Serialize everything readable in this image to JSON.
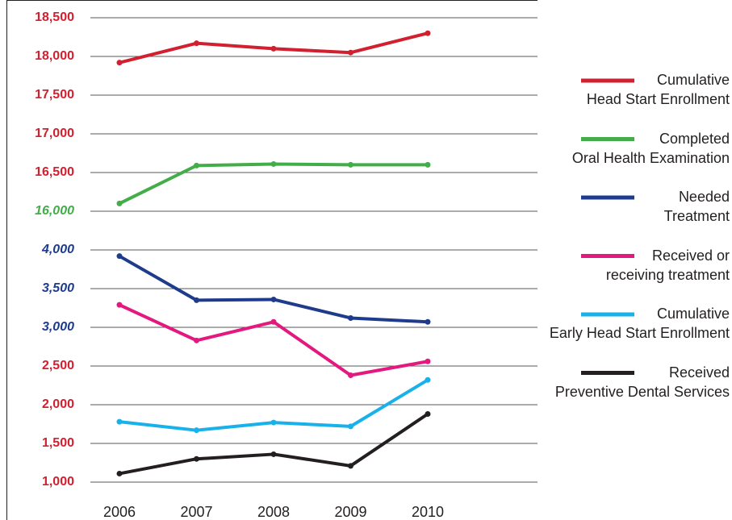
{
  "chart_data": {
    "type": "line",
    "categories": [
      "2006",
      "2007",
      "2008",
      "2009",
      "2010"
    ],
    "series": [
      {
        "name": "Cumulative\nHead Start Enrollment",
        "color": "#d1202f",
        "values": [
          17920,
          18170,
          18100,
          18050,
          18300
        ]
      },
      {
        "name": "Completed\nOral Health Examination",
        "color": "#43ad4a",
        "values": [
          16100,
          16590,
          16610,
          16600,
          16600
        ]
      },
      {
        "name": "Needed\nTreatment",
        "color": "#1f3c8c",
        "values": [
          3920,
          3350,
          3360,
          3120,
          3070
        ]
      },
      {
        "name": "Received or\nreceiving treatment",
        "color": "#e4197f",
        "values": [
          3290,
          2830,
          3070,
          2380,
          2560
        ]
      },
      {
        "name": "Cumulative\nEarly Head Start Enrollment",
        "color": "#18b1e9",
        "values": [
          1780,
          1670,
          1770,
          1720,
          2320
        ]
      },
      {
        "name": "Received\nPreventive Dental Services",
        "color": "#231f20",
        "values": [
          1110,
          1300,
          1360,
          1210,
          1880
        ]
      }
    ],
    "yticks": [
      {
        "value": 1000,
        "label": "1,000"
      },
      {
        "value": 1500,
        "label": "1,500"
      },
      {
        "value": 2000,
        "label": "2,000"
      },
      {
        "value": 2500,
        "label": "2,500"
      },
      {
        "value": 3000,
        "label": "3,000"
      },
      {
        "value": 3500,
        "label": "3,500"
      },
      {
        "value": 4000,
        "label": "4,000"
      },
      {
        "value": 16000,
        "label": "16,000"
      },
      {
        "value": 16500,
        "label": "16,500"
      },
      {
        "value": 17000,
        "label": "17,000"
      },
      {
        "value": 17500,
        "label": "17,500"
      },
      {
        "value": 18000,
        "label": "18,000"
      },
      {
        "value": 18500,
        "label": "18,500"
      }
    ],
    "ytick_colors": [
      "#d1202f",
      "#d1202f",
      "#d1202f",
      "#d1202f",
      "#1f3c8c",
      "#1f3c8c",
      "#1f3c8c",
      "#43ad4a",
      "#d1202f",
      "#d1202f",
      "#d1202f",
      "#d1202f",
      "#d1202f"
    ],
    "ytick_styles": [
      "normal",
      "normal",
      "normal",
      "normal",
      "italic",
      "italic",
      "italic",
      "italic",
      "normal",
      "normal",
      "normal",
      "normal",
      "normal"
    ],
    "grid": true
  }
}
